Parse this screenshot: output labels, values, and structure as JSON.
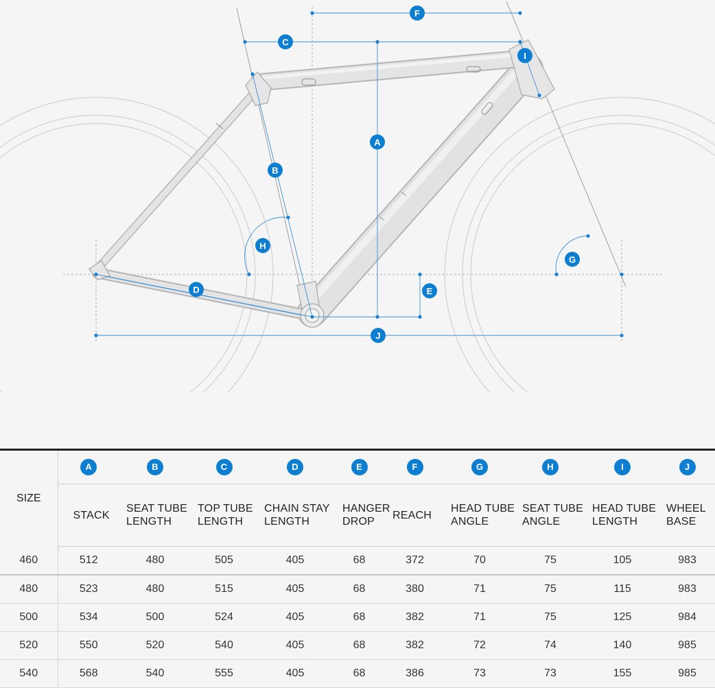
{
  "diagram": {
    "markers": [
      "A",
      "B",
      "C",
      "D",
      "E",
      "F",
      "G",
      "H",
      "I",
      "J"
    ]
  },
  "table": {
    "size_header": "SIZE",
    "columns": [
      {
        "letter": "A",
        "label": "STACK"
      },
      {
        "letter": "B",
        "label": "SEAT TUBE\nLENGTH"
      },
      {
        "letter": "C",
        "label": "TOP TUBE\nLENGTH"
      },
      {
        "letter": "D",
        "label": "CHAIN STAY\nLENGTH"
      },
      {
        "letter": "E",
        "label": "HANGER\nDROP"
      },
      {
        "letter": "F",
        "label": "REACH"
      },
      {
        "letter": "G",
        "label": "HEAD TUBE\nANGLE"
      },
      {
        "letter": "H",
        "label": "SEAT TUBE\nANGLE"
      },
      {
        "letter": "I",
        "label": "HEAD TUBE\nLENGTH"
      },
      {
        "letter": "J",
        "label": "WHEEL\nBASE"
      }
    ],
    "rows": [
      {
        "size": "460",
        "values": [
          "512",
          "480",
          "505",
          "405",
          "68",
          "372",
          "70",
          "75",
          "105",
          "983"
        ]
      },
      {
        "size": "480",
        "values": [
          "523",
          "480",
          "515",
          "405",
          "68",
          "380",
          "71",
          "75",
          "115",
          "983"
        ]
      },
      {
        "size": "500",
        "values": [
          "534",
          "500",
          "524",
          "405",
          "68",
          "382",
          "71",
          "75",
          "125",
          "984"
        ]
      },
      {
        "size": "520",
        "values": [
          "550",
          "520",
          "540",
          "405",
          "68",
          "382",
          "72",
          "74",
          "140",
          "985"
        ]
      },
      {
        "size": "540",
        "values": [
          "568",
          "540",
          "555",
          "405",
          "68",
          "386",
          "73",
          "73",
          "155",
          "985"
        ]
      }
    ]
  },
  "colors": {
    "accent": "#0e7fd0",
    "frame": "#d6d6d6",
    "background": "#f5f5f5"
  }
}
